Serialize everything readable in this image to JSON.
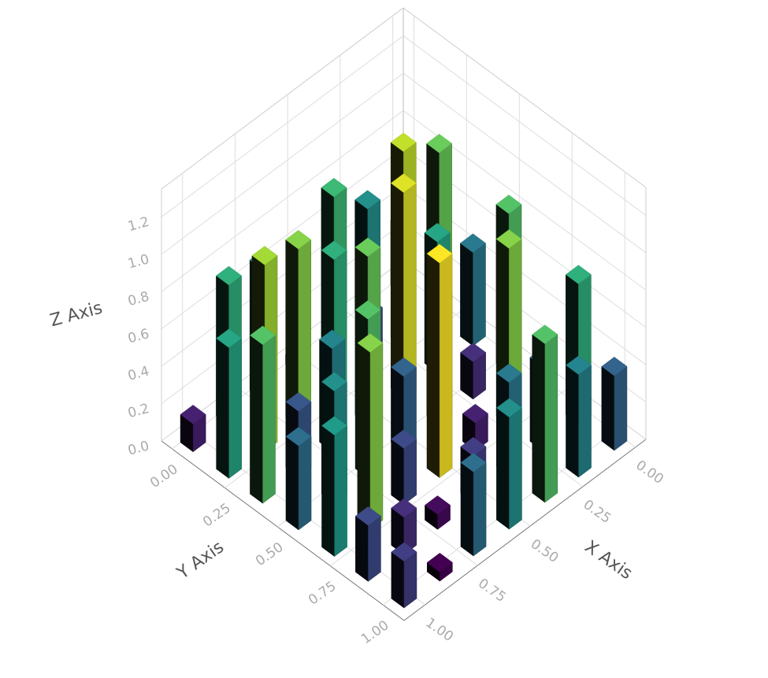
{
  "chart_data": {
    "type": "bar3d",
    "x_label": "X Axis",
    "y_label": "Y Axis",
    "z_label": "Z Axis",
    "colormap": "viridis",
    "x": [
      0,
      0,
      0,
      0,
      0,
      0,
      0,
      0.17,
      0.17,
      0.17,
      0.17,
      0.17,
      0.17,
      0.17,
      0.33,
      0.33,
      0.33,
      0.33,
      0.33,
      0.33,
      0.33,
      0.5,
      0.5,
      0.5,
      0.5,
      0.5,
      0.5,
      0.5,
      0.67,
      0.67,
      0.67,
      0.67,
      0.67,
      0.67,
      0.67,
      0.83,
      0.83,
      0.83,
      0.83,
      0.83,
      0.83,
      0.83,
      1,
      1,
      1,
      1,
      1,
      1,
      1
    ],
    "y": [
      0,
      0.17,
      0.33,
      0.5,
      0.67,
      0.83,
      1,
      0,
      0.17,
      0.33,
      0.5,
      0.67,
      0.83,
      1,
      0,
      0.17,
      0.33,
      0.5,
      0.67,
      0.83,
      1,
      0,
      0.17,
      0.33,
      0.5,
      0.67,
      0.83,
      1,
      0,
      0.17,
      0.33,
      0.5,
      0.67,
      0.83,
      1,
      0,
      0.17,
      0.33,
      0.5,
      0.67,
      0.83,
      1,
      0,
      0.17,
      0.33,
      0.5,
      0.67,
      0.83,
      1
    ],
    "z": [
      0.35,
      0.9,
      0.5,
      0.85,
      0.1,
      0.75,
      0.4,
      0.6,
      1.05,
      0.7,
      0.2,
      0.95,
      0.45,
      0.55,
      0.8,
      0.3,
      1.1,
      0.65,
      0.15,
      0.5,
      0.85,
      0.05,
      0.75,
      0.9,
      0.4,
      1.15,
      0.25,
      0.6,
      0.7,
      0.95,
      0.55,
      0.85,
      0.3,
      0.08,
      0.45,
      0.75,
      1.0,
      0.35,
      0.6,
      0.95,
      0.2,
      0.05,
      0.15,
      0.7,
      0.85,
      0.45,
      0.65,
      0.3,
      0.25
    ],
    "xlim": [
      -0.05,
      1.1
    ],
    "ylim": [
      -0.05,
      1.1
    ],
    "zlim": [
      0,
      1.35
    ],
    "xticks": [
      {
        "value": 0,
        "label": "0.00"
      },
      {
        "value": 0.25,
        "label": "0.25"
      },
      {
        "value": 0.5,
        "label": "0.50"
      },
      {
        "value": 0.75,
        "label": "0.75"
      },
      {
        "value": 1,
        "label": "1.00"
      }
    ],
    "yticks": [
      {
        "value": 0,
        "label": "0.00"
      },
      {
        "value": 0.25,
        "label": "0.25"
      },
      {
        "value": 0.5,
        "label": "0.50"
      },
      {
        "value": 0.75,
        "label": "0.75"
      },
      {
        "value": 1,
        "label": "1.00"
      }
    ],
    "zticks": [
      {
        "value": 0,
        "label": "0.0"
      },
      0.2,
      0.4,
      0.6,
      0.8,
      {
        "value": 1,
        "label": "1.0"
      },
      1.2
    ],
    "grid": true
  }
}
